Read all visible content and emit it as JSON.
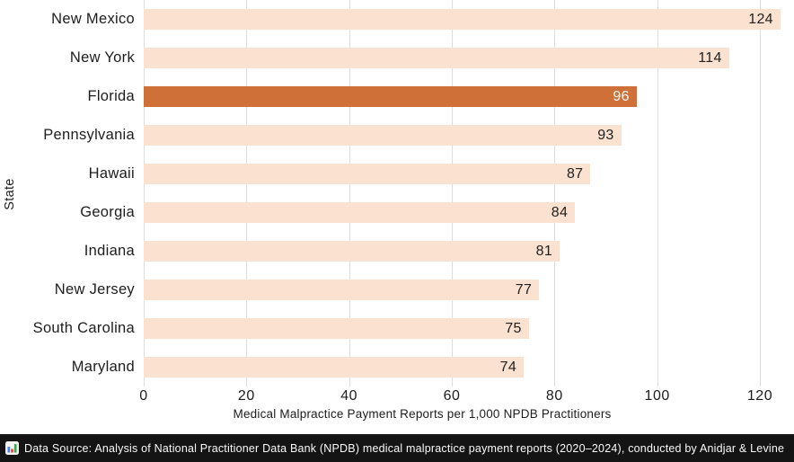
{
  "chart_data": {
    "type": "bar",
    "orientation": "horizontal",
    "categories": [
      "New Mexico",
      "New York",
      "Florida",
      "Pennsylvania",
      "Hawaii",
      "Georgia",
      "Indiana",
      "New Jersey",
      "South Carolina",
      "Maryland"
    ],
    "values": [
      124,
      114,
      96,
      93,
      87,
      84,
      81,
      77,
      75,
      74
    ],
    "highlight_index": 2,
    "highlight_category": "Florida",
    "xlabel": "Medical Malpractice Payment Reports per 1,000 NPDB Practitioners",
    "ylabel": "State",
    "xticks": [
      0,
      20,
      40,
      60,
      80,
      100,
      120
    ],
    "xlim": [
      0,
      126.6
    ],
    "grid": "vertical-only",
    "legend": "none",
    "value_labels": "inside-bar-end",
    "colors": {
      "bar_default": "#FBE1CF",
      "bar_highlight": "#CE7038",
      "value_label_default": "#212121",
      "value_label_highlight": "#FFFFFF",
      "gridline": "#DEDEDE",
      "axis_text": "#1D1D1D"
    }
  },
  "footer": {
    "icon": "bar-chart-emoji",
    "text": "Data Source: Analysis of National Practitioner Data Bank (NPDB) medical malpractice payment reports (2020–2024), conducted by Anidjar & Levine",
    "background": "#141414",
    "text_color": "#FAFAFA"
  }
}
